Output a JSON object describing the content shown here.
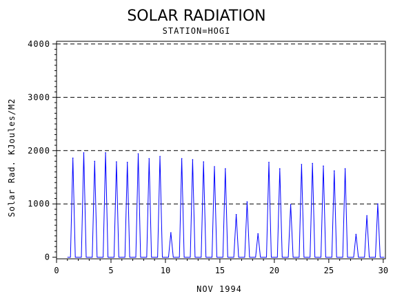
{
  "chart_data": {
    "type": "line",
    "title": "SOLAR RADIATION",
    "subtitle": "STATION=HOGI",
    "xlabel": "NOV 1994",
    "ylabel": "Solar Rad. KJoules/M2",
    "xlim": [
      0,
      30.2
    ],
    "ylim": [
      -30,
      4050
    ],
    "x_ticks": [
      0,
      5,
      10,
      15,
      20,
      25,
      30
    ],
    "y_ticks": [
      0,
      1000,
      2000,
      3000,
      4000
    ],
    "y_tick_labels": [
      "0",
      "1000",
      "2000",
      "3000",
      "4000"
    ],
    "grid_y": [
      1000,
      2000,
      3000,
      4000
    ],
    "grid_style": "dashed",
    "series": [
      {
        "color": "#0000ff",
        "daily_peaks": [
          {
            "day": 1.5,
            "value": 1860
          },
          {
            "day": 2.5,
            "value": 1960
          },
          {
            "day": 3.5,
            "value": 1800
          },
          {
            "day": 4.5,
            "value": 1960
          },
          {
            "day": 5.5,
            "value": 1790
          },
          {
            "day": 6.5,
            "value": 1780
          },
          {
            "day": 7.5,
            "value": 1940
          },
          {
            "day": 8.5,
            "value": 1850
          },
          {
            "day": 9.5,
            "value": 1890
          },
          {
            "day": 10.5,
            "value": 460
          },
          {
            "day": 11.5,
            "value": 1850
          },
          {
            "day": 12.5,
            "value": 1830
          },
          {
            "day": 13.5,
            "value": 1790
          },
          {
            "day": 14.5,
            "value": 1700
          },
          {
            "day": 15.5,
            "value": 1660
          },
          {
            "day": 16.5,
            "value": 800
          },
          {
            "day": 17.5,
            "value": 1040
          },
          {
            "day": 18.5,
            "value": 440
          },
          {
            "day": 19.5,
            "value": 1780
          },
          {
            "day": 20.5,
            "value": 1660
          },
          {
            "day": 21.5,
            "value": 990
          },
          {
            "day": 22.5,
            "value": 1740
          },
          {
            "day": 23.5,
            "value": 1760
          },
          {
            "day": 24.5,
            "value": 1710
          },
          {
            "day": 25.5,
            "value": 1620
          },
          {
            "day": 26.5,
            "value": 1660
          },
          {
            "day": 27.5,
            "value": 430
          },
          {
            "day": 28.5,
            "value": 780
          },
          {
            "day": 29.5,
            "value": 1000
          }
        ]
      }
    ]
  }
}
